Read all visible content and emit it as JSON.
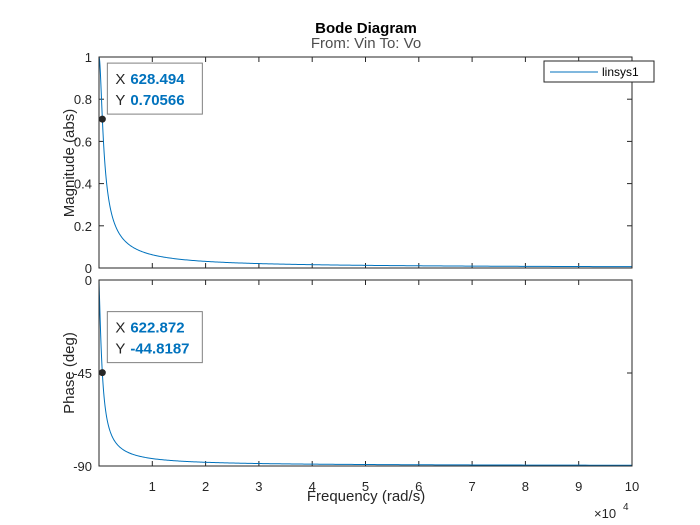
{
  "chart_data": {
    "type": "line",
    "title": "Bode Diagram",
    "subtitle": "From: Vin  To: Vo",
    "xlabel": "Frequency  (rad/s)",
    "x_multiplier": {
      "base": "×10",
      "exponent": "4"
    },
    "xlim": [
      0,
      100000
    ],
    "x_ticks": [
      10000,
      20000,
      30000,
      40000,
      50000,
      60000,
      70000,
      80000,
      90000,
      100000
    ],
    "x_tick_labels": [
      "1",
      "2",
      "3",
      "4",
      "5",
      "6",
      "7",
      "8",
      "9",
      "10"
    ],
    "legend": {
      "entries": [
        "linsys1"
      ],
      "placement": "top-right"
    },
    "line_color": "#0072BD",
    "datatip_color": "#0072BD",
    "model": {
      "cutoff_rad_s": 628.3
    },
    "panels": [
      {
        "name": "magnitude",
        "ylabel": "Magnitude (abs)",
        "ylim": [
          0,
          1
        ],
        "y_ticks": [
          0,
          0.2,
          0.4,
          0.6,
          0.8,
          1
        ],
        "y_tick_labels": [
          "0",
          "0.2",
          "0.4",
          "0.6",
          "0.8",
          "1"
        ],
        "datatip": {
          "x_label": "X",
          "x_value": "628.494",
          "y_label": "Y",
          "y_value": "0.70566",
          "x": 628.494,
          "y": 0.70566
        }
      },
      {
        "name": "phase",
        "ylabel": "Phase (deg)",
        "ylim": [
          -90,
          0
        ],
        "y_ticks": [
          -90,
          -45,
          0
        ],
        "y_tick_labels": [
          "-90",
          "-45",
          "0"
        ],
        "datatip": {
          "x_label": "X",
          "x_value": "622.872",
          "y_label": "Y",
          "y_value": "-44.8187",
          "x": 622.872,
          "y": -44.8187
        }
      }
    ]
  }
}
